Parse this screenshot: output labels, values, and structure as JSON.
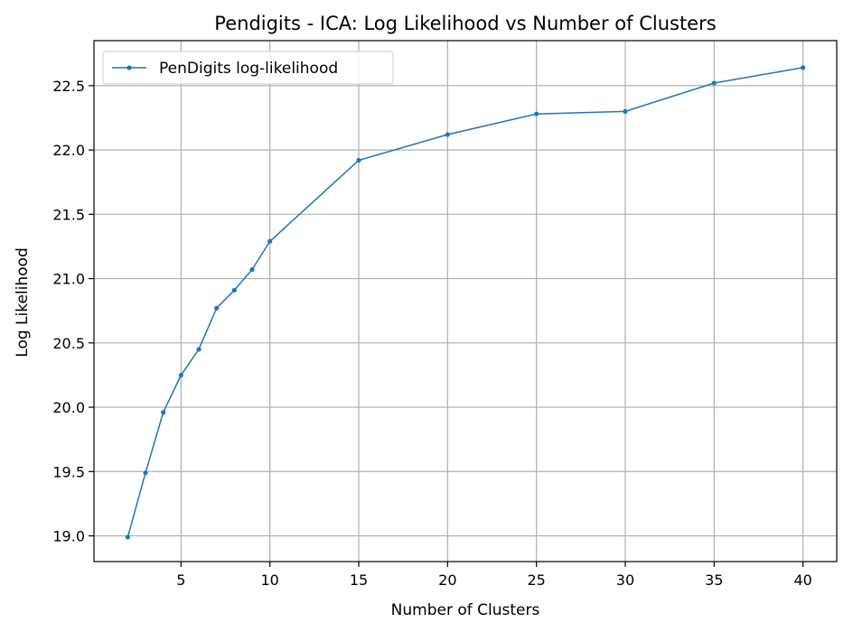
{
  "chart_data": {
    "type": "line",
    "title": "Pendigits - ICA: Log Likelihood vs Number of Clusters",
    "xlabel": "Number of Clusters",
    "ylabel": "Log Likelihood",
    "xlim": [
      0.1,
      41.9
    ],
    "ylim": [
      18.8,
      22.85
    ],
    "xticks": [
      5,
      10,
      15,
      20,
      25,
      30,
      35,
      40
    ],
    "yticks": [
      19.0,
      19.5,
      20.0,
      20.5,
      21.0,
      21.5,
      22.0,
      22.5
    ],
    "grid": true,
    "legend_position": "top-left",
    "series": [
      {
        "name": "PenDigits log-likelihood",
        "color": "#1f77b4",
        "x": [
          2,
          3,
          4,
          5,
          6,
          7,
          8,
          9,
          10,
          15,
          20,
          25,
          30,
          35,
          40
        ],
        "y": [
          18.99,
          19.49,
          19.96,
          20.25,
          20.45,
          20.77,
          20.91,
          21.07,
          21.29,
          21.92,
          22.12,
          22.28,
          22.3,
          22.52,
          22.64
        ]
      }
    ]
  }
}
